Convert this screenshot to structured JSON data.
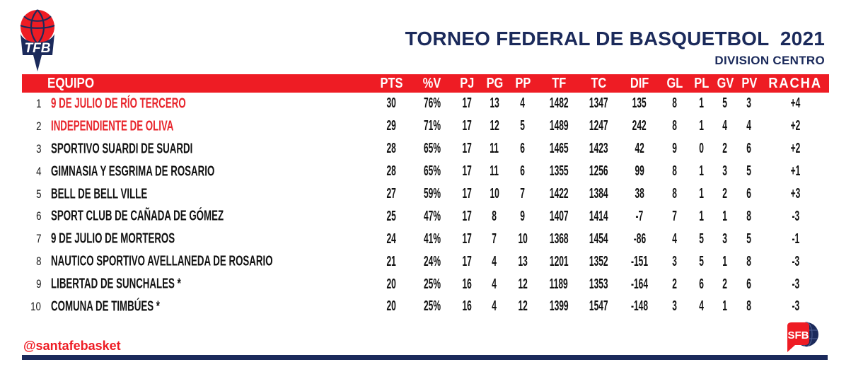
{
  "page": {
    "title": "TORNEO FEDERAL DE BASQUETBOL  2021",
    "subtitle": "DIVISION CENTRO"
  },
  "tfb_logo": {
    "label": "TFB"
  },
  "table": {
    "equipo_header": "EQUIPO",
    "stat_columns": [
      "PTS",
      "%V",
      "PJ",
      "PG",
      "PP",
      "TF",
      "TC",
      "DIF",
      "GL",
      "PL",
      "GV",
      "PV",
      "RACHA"
    ],
    "rows": [
      {
        "rank": "1",
        "team": "9 DE JULIO DE RÍO TERCERO",
        "highlight": true,
        "stats": [
          "30",
          "76%",
          "17",
          "13",
          "4",
          "1482",
          "1347",
          "135",
          "8",
          "1",
          "5",
          "3",
          "+4"
        ]
      },
      {
        "rank": "2",
        "team": "INDEPENDIENTE DE OLIVA",
        "highlight": true,
        "stats": [
          "29",
          "71%",
          "17",
          "12",
          "5",
          "1489",
          "1247",
          "242",
          "8",
          "1",
          "4",
          "4",
          "+2"
        ]
      },
      {
        "rank": "3",
        "team": "SPORTIVO SUARDI DE SUARDI",
        "highlight": false,
        "stats": [
          "28",
          "65%",
          "17",
          "11",
          "6",
          "1465",
          "1423",
          "42",
          "9",
          "0",
          "2",
          "6",
          "+2"
        ]
      },
      {
        "rank": "4",
        "team": "GIMNASIA Y ESGRIMA DE ROSARIO",
        "highlight": false,
        "stats": [
          "28",
          "65%",
          "17",
          "11",
          "6",
          "1355",
          "1256",
          "99",
          "8",
          "1",
          "3",
          "5",
          "+1"
        ]
      },
      {
        "rank": "5",
        "team": "BELL DE BELL VILLE",
        "highlight": false,
        "stats": [
          "27",
          "59%",
          "17",
          "10",
          "7",
          "1422",
          "1384",
          "38",
          "8",
          "1",
          "2",
          "6",
          "+3"
        ]
      },
      {
        "rank": "6",
        "team": "SPORT CLUB DE CAÑADA DE GÓMEZ",
        "highlight": false,
        "stats": [
          "25",
          "47%",
          "17",
          "8",
          "9",
          "1407",
          "1414",
          "-7",
          "7",
          "1",
          "1",
          "8",
          "-3"
        ]
      },
      {
        "rank": "7",
        "team": "9 DE JULIO DE MORTEROS",
        "highlight": false,
        "stats": [
          "24",
          "41%",
          "17",
          "7",
          "10",
          "1368",
          "1454",
          "-86",
          "4",
          "5",
          "3",
          "5",
          "-1"
        ]
      },
      {
        "rank": "8",
        "team": "NAUTICO SPORTIVO AVELLANEDA DE ROSARIO",
        "highlight": false,
        "stats": [
          "21",
          "24%",
          "17",
          "4",
          "13",
          "1201",
          "1352",
          "-151",
          "3",
          "5",
          "1",
          "8",
          "-3"
        ]
      },
      {
        "rank": "9",
        "team": "LIBERTAD DE SUNCHALES *",
        "highlight": false,
        "stats": [
          "20",
          "25%",
          "16",
          "4",
          "12",
          "1189",
          "1353",
          "-164",
          "2",
          "6",
          "2",
          "6",
          "-3"
        ]
      },
      {
        "rank": "10",
        "team": "COMUNA DE TIMBÚES *",
        "highlight": false,
        "stats": [
          "20",
          "25%",
          "16",
          "4",
          "12",
          "1399",
          "1547",
          "-148",
          "3",
          "4",
          "1",
          "8",
          "-3"
        ]
      }
    ]
  },
  "footer": {
    "handle": "@santafebasket"
  },
  "sfb_logo": {
    "label": "SFB"
  },
  "colors": {
    "red": "#EE1C24",
    "team_red": "#E8242B",
    "navy": "#1B2A5B",
    "text": "#111111"
  }
}
